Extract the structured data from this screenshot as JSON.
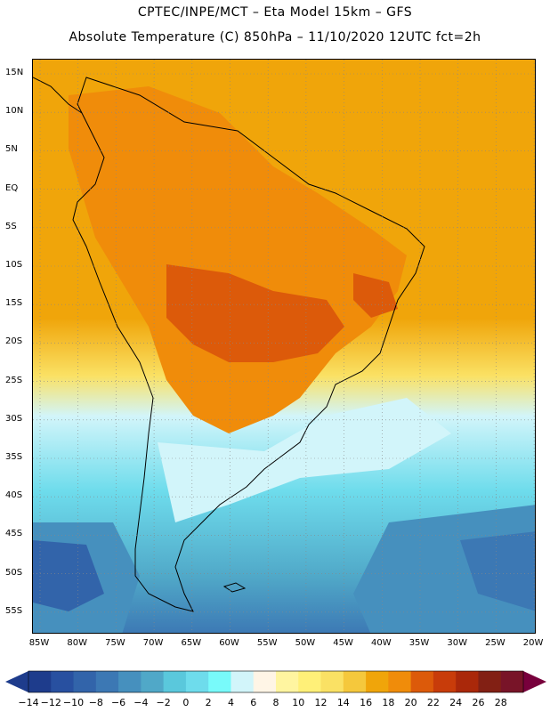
{
  "header": {
    "line1": "CPTEC/INPE/MCT –  Eta Model 15km – GFS",
    "line2": "Absolute Temperature (C) 850hPa – 11/10/2020 12UTC fct=2h"
  },
  "map": {
    "lat_labels": [
      "15N",
      "10N",
      "5N",
      "EQ",
      "5S",
      "10S",
      "15S",
      "20S",
      "25S",
      "30S",
      "35S",
      "40S",
      "45S",
      "50S",
      "55S"
    ],
    "lon_labels": [
      "85W",
      "80W",
      "75W",
      "70W",
      "65W",
      "60W",
      "55W",
      "50W",
      "45W",
      "40W",
      "35W",
      "30W",
      "25W",
      "20W"
    ],
    "gridlines": "dotted"
  },
  "colorbar": {
    "labels": [
      "-14",
      "-12",
      "-10",
      "-8",
      "-6",
      "-4",
      "-2",
      "0",
      "2",
      "4",
      "6",
      "8",
      "10",
      "12",
      "14",
      "16",
      "18",
      "20",
      "22",
      "24",
      "26",
      "28"
    ],
    "colors": [
      "#1e3c8c",
      "#2850a0",
      "#3264aa",
      "#3c78b4",
      "#4690be",
      "#50a8c8",
      "#5ac8dc",
      "#6edcec",
      "#78fafa",
      "#d2f5fa",
      "#fff5e6",
      "#fff5a0",
      "#fff078",
      "#fae164",
      "#f5c83c",
      "#f0a50a",
      "#f08c0a",
      "#dc5a0a",
      "#c83c0a",
      "#aa280a",
      "#822014",
      "#781428"
    ],
    "arrow_left_color": "#1e3c8c",
    "arrow_right_color": "#78003c"
  }
}
